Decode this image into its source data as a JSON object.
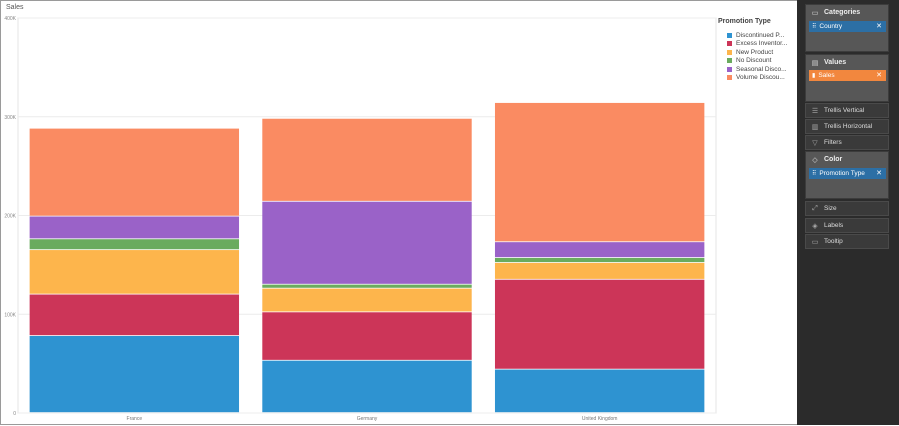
{
  "chart_title": "Sales",
  "legend": {
    "title": "Promotion Type"
  },
  "chart_data": {
    "type": "bar",
    "stacked": true,
    "categories": [
      "France",
      "Germany",
      "United Kingdom"
    ],
    "series": [
      {
        "name": "Discontinued P...",
        "color": "#2e93d1",
        "values": [
          78000,
          53000,
          44000
        ]
      },
      {
        "name": "Excess Inventor...",
        "color": "#cc3558",
        "values": [
          42000,
          49000,
          91000
        ]
      },
      {
        "name": "New Product",
        "color": "#fdb54c",
        "values": [
          45000,
          24000,
          17000
        ]
      },
      {
        "name": "No Discount",
        "color": "#6aab5e",
        "values": [
          11000,
          4000,
          5000
        ]
      },
      {
        "name": "Seasonal Disco...",
        "color": "#9a62c8",
        "values": [
          23000,
          84000,
          16000
        ]
      },
      {
        "name": "Volume Discou...",
        "color": "#fa8b62",
        "values": [
          89000,
          84000,
          141000
        ]
      }
    ],
    "ylim": [
      0,
      400000
    ],
    "y_ticks": [
      0,
      100000,
      200000,
      300000,
      400000
    ],
    "y_tick_labels": [
      "0",
      "100K",
      "200K",
      "300K",
      "400K"
    ],
    "grid": true,
    "legend_position": "top-right"
  },
  "panel": {
    "categories": {
      "label": "Categories",
      "pill": "Country",
      "pill_color": "#2c6fa5"
    },
    "values": {
      "label": "Values",
      "pill": "Sales",
      "pill_color": "#f2873e"
    },
    "trellis_vertical": "Trellis Vertical",
    "trellis_horizontal": "Trellis Horizontal",
    "filters": "Filters",
    "color": {
      "label": "Color",
      "pill": "Promotion Type",
      "pill_color": "#2c6fa5"
    },
    "size": "Size",
    "labels": "Labels",
    "tooltip": "Tooltip"
  },
  "icons": {
    "categories": "categories-icon",
    "values": "values-icon",
    "trellis_vertical": "trellis-vertical-icon",
    "trellis_horizontal": "trellis-horizontal-icon",
    "filters": "filter-icon",
    "color": "color-icon",
    "size": "size-icon",
    "labels": "labels-icon",
    "tooltip": "tooltip-icon"
  }
}
